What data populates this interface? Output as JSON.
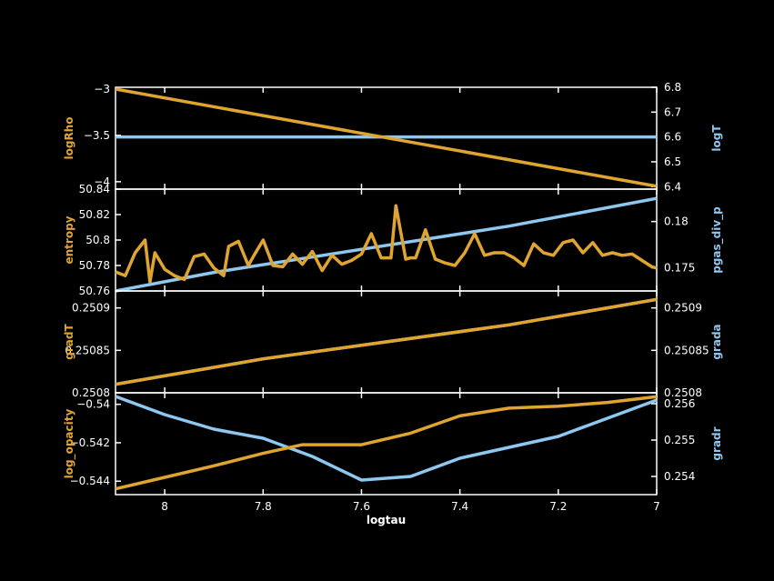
{
  "colors": {
    "background": "#000000",
    "frame": "#ffffff",
    "left_series": "#e0a531",
    "right_series": "#8ec8f0"
  },
  "chart_data": {
    "type": "line",
    "xlabel": "logtau",
    "xlim": [
      8.1,
      7.0
    ],
    "xticks": [
      8,
      7.8,
      7.6,
      7.4,
      7.2,
      7
    ],
    "xtick_labels": [
      "8",
      "7.8",
      "7.6",
      "7.4",
      "7.2",
      "7"
    ],
    "grid": false,
    "panels": [
      {
        "left": {
          "label": "logRho",
          "ylim": [
            -4.08,
            -2.98
          ],
          "ticks": [
            -3,
            -3.5,
            -4
          ],
          "tick_labels": [
            "−3",
            "−3.5",
            "−4"
          ],
          "points": [
            [
              8.1,
              -3.0
            ],
            [
              7.0,
              -4.05
            ]
          ]
        },
        "right": {
          "label": "logT",
          "ylim": [
            6.39,
            6.8
          ],
          "ticks": [
            6.8,
            6.7,
            6.6,
            6.5,
            6.4
          ],
          "tick_labels": [
            "6.8",
            "6.7",
            "6.6",
            "6.5",
            "6.4"
          ],
          "points": [
            [
              8.1,
              6.6
            ],
            [
              7.0,
              6.6
            ]
          ]
        }
      },
      {
        "left": {
          "label": "entropy",
          "ylim": [
            50.76,
            50.84
          ],
          "ticks": [
            50.84,
            50.82,
            50.8,
            50.78,
            50.76
          ],
          "tick_labels": [
            "50.84",
            "50.82",
            "50.8",
            "50.78",
            "50.76"
          ],
          "points": [
            [
              8.1,
              50.775
            ],
            [
              8.08,
              50.772
            ],
            [
              8.06,
              50.79
            ],
            [
              8.04,
              50.8
            ],
            [
              8.03,
              50.767
            ],
            [
              8.02,
              50.79
            ],
            [
              8.0,
              50.777
            ],
            [
              7.98,
              50.772
            ],
            [
              7.96,
              50.769
            ],
            [
              7.94,
              50.787
            ],
            [
              7.92,
              50.789
            ],
            [
              7.9,
              50.778
            ],
            [
              7.88,
              50.772
            ],
            [
              7.87,
              50.795
            ],
            [
              7.85,
              50.799
            ],
            [
              7.83,
              50.78
            ],
            [
              7.82,
              50.787
            ],
            [
              7.8,
              50.8
            ],
            [
              7.78,
              50.78
            ],
            [
              7.76,
              50.779
            ],
            [
              7.74,
              50.789
            ],
            [
              7.72,
              50.781
            ],
            [
              7.7,
              50.791
            ],
            [
              7.68,
              50.776
            ],
            [
              7.66,
              50.788
            ],
            [
              7.64,
              50.781
            ],
            [
              7.62,
              50.784
            ],
            [
              7.6,
              50.789
            ],
            [
              7.58,
              50.805
            ],
            [
              7.56,
              50.786
            ],
            [
              7.54,
              50.786
            ],
            [
              7.53,
              50.827
            ],
            [
              7.51,
              50.785
            ],
            [
              7.5,
              50.786
            ],
            [
              7.49,
              50.786
            ],
            [
              7.47,
              50.808
            ],
            [
              7.45,
              50.785
            ],
            [
              7.43,
              50.782
            ],
            [
              7.41,
              50.78
            ],
            [
              7.39,
              50.79
            ],
            [
              7.37,
              50.805
            ],
            [
              7.35,
              50.788
            ],
            [
              7.33,
              50.79
            ],
            [
              7.31,
              50.79
            ],
            [
              7.29,
              50.786
            ],
            [
              7.27,
              50.78
            ],
            [
              7.25,
              50.797
            ],
            [
              7.23,
              50.79
            ],
            [
              7.21,
              50.788
            ],
            [
              7.19,
              50.798
            ],
            [
              7.17,
              50.8
            ],
            [
              7.15,
              50.79
            ],
            [
              7.13,
              50.798
            ],
            [
              7.11,
              50.788
            ],
            [
              7.09,
              50.79
            ],
            [
              7.07,
              50.788
            ],
            [
              7.05,
              50.789
            ],
            [
              7.03,
              50.784
            ],
            [
              7.01,
              50.779
            ],
            [
              7.0,
              50.778
            ]
          ]
        },
        "right": {
          "label": "pgas_div_p",
          "ylim": [
            0.1725,
            0.1835
          ],
          "ticks": [
            0.18,
            0.175
          ],
          "tick_labels": [
            "0.18",
            "0.175"
          ],
          "points": [
            [
              8.1,
              0.1725
            ],
            [
              7.9,
              0.1745
            ],
            [
              7.6,
              0.177
            ],
            [
              7.3,
              0.1795
            ],
            [
              7.0,
              0.1825
            ]
          ]
        }
      },
      {
        "left": {
          "label": "gradT",
          "ylim": [
            0.2508,
            0.25092
          ],
          "ticks": [
            0.2509,
            0.25085,
            0.2508
          ],
          "tick_labels": [
            "0.2509",
            "0.25085",
            "0.2508"
          ],
          "points": [
            [
              8.1,
              0.25081
            ],
            [
              7.8,
              0.25084
            ],
            [
              7.55,
              0.25086
            ],
            [
              7.3,
              0.25088
            ],
            [
              7.0,
              0.25091
            ]
          ]
        },
        "right": {
          "label": "grada",
          "ylim": [
            0.2508,
            0.25092
          ],
          "ticks": [
            0.2509,
            0.25085,
            0.2508
          ],
          "tick_labels": [
            "0.2509",
            "0.25085",
            "0.2508"
          ],
          "points": [
            [
              8.1,
              0.25081
            ],
            [
              7.8,
              0.25084
            ],
            [
              7.55,
              0.25086
            ],
            [
              7.3,
              0.25088
            ],
            [
              7.0,
              0.25091
            ]
          ]
        }
      },
      {
        "left": {
          "label": "log_opacity",
          "ylim": [
            -0.5447,
            -0.5394
          ],
          "ticks": [
            -0.54,
            -0.542,
            -0.544
          ],
          "tick_labels": [
            "−0.54",
            "−0.542",
            "−0.544"
          ],
          "points": [
            [
              8.1,
              -0.5444
            ],
            [
              8.0,
              -0.5438
            ],
            [
              7.9,
              -0.5432
            ],
            [
              7.8,
              -0.54255
            ],
            [
              7.72,
              -0.5421
            ],
            [
              7.6,
              -0.5421
            ],
            [
              7.5,
              -0.5415
            ],
            [
              7.4,
              -0.5406
            ],
            [
              7.3,
              -0.5402
            ],
            [
              7.2,
              -0.5401
            ],
            [
              7.1,
              -0.5399
            ],
            [
              7.0,
              -0.5396
            ]
          ]
        },
        "right": {
          "label": "gradr",
          "ylim": [
            0.2535,
            0.2563
          ],
          "ticks": [
            0.256,
            0.255,
            0.254
          ],
          "tick_labels": [
            "0.256",
            "0.255",
            "0.254"
          ],
          "points": [
            [
              8.1,
              0.2562
            ],
            [
              8.0,
              0.2557
            ],
            [
              7.9,
              0.2553
            ],
            [
              7.8,
              0.25505
            ],
            [
              7.7,
              0.25455
            ],
            [
              7.6,
              0.2539
            ],
            [
              7.5,
              0.254
            ],
            [
              7.4,
              0.2545
            ],
            [
              7.3,
              0.2548
            ],
            [
              7.2,
              0.2551
            ],
            [
              7.1,
              0.2556
            ],
            [
              7.0,
              0.2561
            ]
          ]
        }
      }
    ]
  }
}
